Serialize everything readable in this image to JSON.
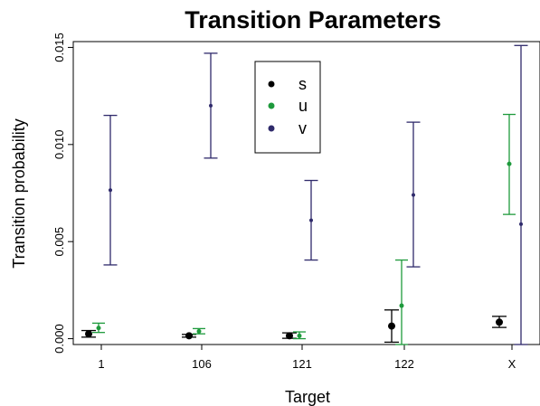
{
  "chart_data": {
    "type": "scatter",
    "title": "Transition Parameters",
    "xlabel": "Target",
    "ylabel": "Transition probability",
    "categories": [
      "1",
      "106",
      "121",
      "122",
      "X"
    ],
    "ylim": [
      -0.0003,
      0.0153
    ],
    "yticks": [
      0.0,
      0.005,
      0.01,
      0.015
    ],
    "ytick_labels": [
      "0.000",
      "0.005",
      "0.010",
      "0.015"
    ],
    "grid": false,
    "legend_position": "top-center",
    "series": [
      {
        "name": "s",
        "color": "#000000",
        "values": [
          0.00025,
          0.00015,
          0.00015,
          0.00065,
          0.00085
        ],
        "lower": [
          8e-05,
          8e-05,
          2e-05,
          -0.00018,
          0.00058
        ],
        "upper": [
          0.00042,
          0.00022,
          0.0003,
          0.00148,
          0.00115
        ]
      },
      {
        "name": "u",
        "color": "#1e9a3c",
        "values": [
          0.00055,
          0.00038,
          0.00015,
          0.0017,
          0.009
        ],
        "lower": [
          0.00032,
          0.00025,
          0.0,
          -0.0003,
          0.0064
        ],
        "upper": [
          0.0008,
          0.00052,
          0.00035,
          0.00405,
          0.01155
        ]
      },
      {
        "name": "v",
        "color": "#2f2a6b",
        "values": [
          0.00765,
          0.012,
          0.0061,
          0.0074,
          0.0059
        ],
        "lower": [
          0.0038,
          0.0093,
          0.00405,
          0.0037,
          -0.0003
        ],
        "upper": [
          0.0115,
          0.0147,
          0.00815,
          0.01115,
          0.0151
        ]
      }
    ]
  }
}
